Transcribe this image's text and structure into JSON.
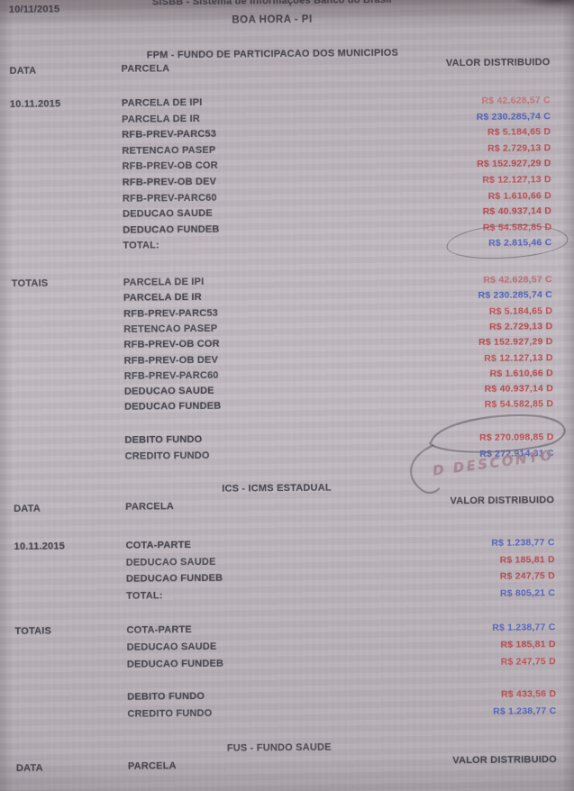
{
  "header": {
    "print_date": "10/11/2015",
    "system_name": "SISBB - Sistema de Informações Banco do Brasil",
    "entity_name": "BOA HORA - PI"
  },
  "table_columns": {
    "date": "DATA",
    "parcel": "PARCELA",
    "value": "VALOR DISTRIBUIDO"
  },
  "annotations": {
    "handwritten_note": "D DESCONTO"
  },
  "colors": {
    "credit_value": "#5363bf",
    "debit_value": "#bf4a4f",
    "faded_credit_value": "#c5707a",
    "pen_ink": "#5a4f5c",
    "handwriting_ink": "#a48691",
    "paper": "#bfb9bf",
    "print_text": "#45434d"
  },
  "sections": [
    {
      "id": "fpm",
      "title": "FPM - FUNDO DE PARTICIPACAO DOS MUNICIPIOS",
      "blocks": [
        {
          "date_label": "10.11.2015",
          "rows": [
            {
              "parcel": "PARCELA DE IPI",
              "value": "R$ 42.628,57 C",
              "side": "C",
              "tone": "faded"
            },
            {
              "parcel": "PARCELA DE IR",
              "value": "R$ 230.285,74 C",
              "side": "C"
            },
            {
              "parcel": "RFB-PREV-PARC53",
              "value": "R$ 5.184,65 D",
              "side": "D"
            },
            {
              "parcel": "RETENCAO PASEP",
              "value": "R$ 2.729,13 D",
              "side": "D"
            },
            {
              "parcel": "RFB-PREV-OB COR",
              "value": "R$ 152.927,29 D",
              "side": "D"
            },
            {
              "parcel": "RFB-PREV-OB DEV",
              "value": "R$ 12.127,13 D",
              "side": "D"
            },
            {
              "parcel": "RFB-PREV-PARC60",
              "value": "R$ 1.610,66 D",
              "side": "D"
            },
            {
              "parcel": "DEDUCAO SAUDE",
              "value": "R$ 40.937,14 D",
              "side": "D"
            },
            {
              "parcel": "DEDUCAO FUNDEB",
              "value": "R$ 54.582,85 D",
              "side": "D"
            },
            {
              "parcel": "TOTAL:",
              "value": "R$ 2.815,46 C",
              "side": "C",
              "circled": true
            }
          ]
        },
        {
          "date_label": "TOTAIS",
          "rows": [
            {
              "parcel": "PARCELA DE IPI",
              "value": "R$ 42.628,57 C",
              "side": "C",
              "tone": "faded"
            },
            {
              "parcel": "PARCELA DE IR",
              "value": "R$ 230.285,74 C",
              "side": "C"
            },
            {
              "parcel": "RFB-PREV-PARC53",
              "value": "R$ 5.184,65 D",
              "side": "D"
            },
            {
              "parcel": "RETENCAO PASEP",
              "value": "R$ 2.729,13 D",
              "side": "D"
            },
            {
              "parcel": "RFB-PREV-OB COR",
              "value": "R$ 152.927,29 D",
              "side": "D"
            },
            {
              "parcel": "RFB-PREV-OB DEV",
              "value": "R$ 12.127,13 D",
              "side": "D"
            },
            {
              "parcel": "RFB-PREV-PARC60",
              "value": "R$ 1.610,66 D",
              "side": "D"
            },
            {
              "parcel": "DEDUCAO SAUDE",
              "value": "R$ 40.937,14 D",
              "side": "D"
            },
            {
              "parcel": "DEDUCAO FUNDEB",
              "value": "R$ 54.582,85 D",
              "side": "D"
            }
          ]
        },
        {
          "date_label": "",
          "rows": [
            {
              "parcel": "DEBITO FUNDO",
              "value": "R$ 270.098,85 D",
              "side": "D",
              "pen_circled": true
            },
            {
              "parcel": "CREDITO FUNDO",
              "value": "R$ 272.914,31 C",
              "side": "C"
            }
          ]
        }
      ]
    },
    {
      "id": "ics",
      "title": "ICS - ICMS ESTADUAL",
      "blocks": [
        {
          "date_label": "10.11.2015",
          "rows": [
            {
              "parcel": "COTA-PARTE",
              "value": "R$ 1.238,77 C",
              "side": "C"
            },
            {
              "parcel": "DEDUCAO SAUDE",
              "value": "R$ 185,81 D",
              "side": "D"
            },
            {
              "parcel": "DEDUCAO FUNDEB",
              "value": "R$ 247,75 D",
              "side": "D"
            },
            {
              "parcel": "TOTAL:",
              "value": "R$ 805,21 C",
              "side": "C"
            }
          ]
        },
        {
          "date_label": "TOTAIS",
          "rows": [
            {
              "parcel": "COTA-PARTE",
              "value": "R$ 1.238,77 C",
              "side": "C"
            },
            {
              "parcel": "DEDUCAO SAUDE",
              "value": "R$ 185,81 D",
              "side": "D"
            },
            {
              "parcel": "DEDUCAO FUNDEB",
              "value": "R$ 247,75 D",
              "side": "D"
            }
          ]
        },
        {
          "date_label": "",
          "rows": [
            {
              "parcel": "DEBITO FUNDO",
              "value": "R$ 433,56 D",
              "side": "D"
            },
            {
              "parcel": "CREDITO FUNDO",
              "value": "R$ 1.238,77 C",
              "side": "C"
            }
          ]
        }
      ]
    },
    {
      "id": "fus",
      "title": "FUS - FUNDO SAUDE",
      "blocks": []
    }
  ]
}
